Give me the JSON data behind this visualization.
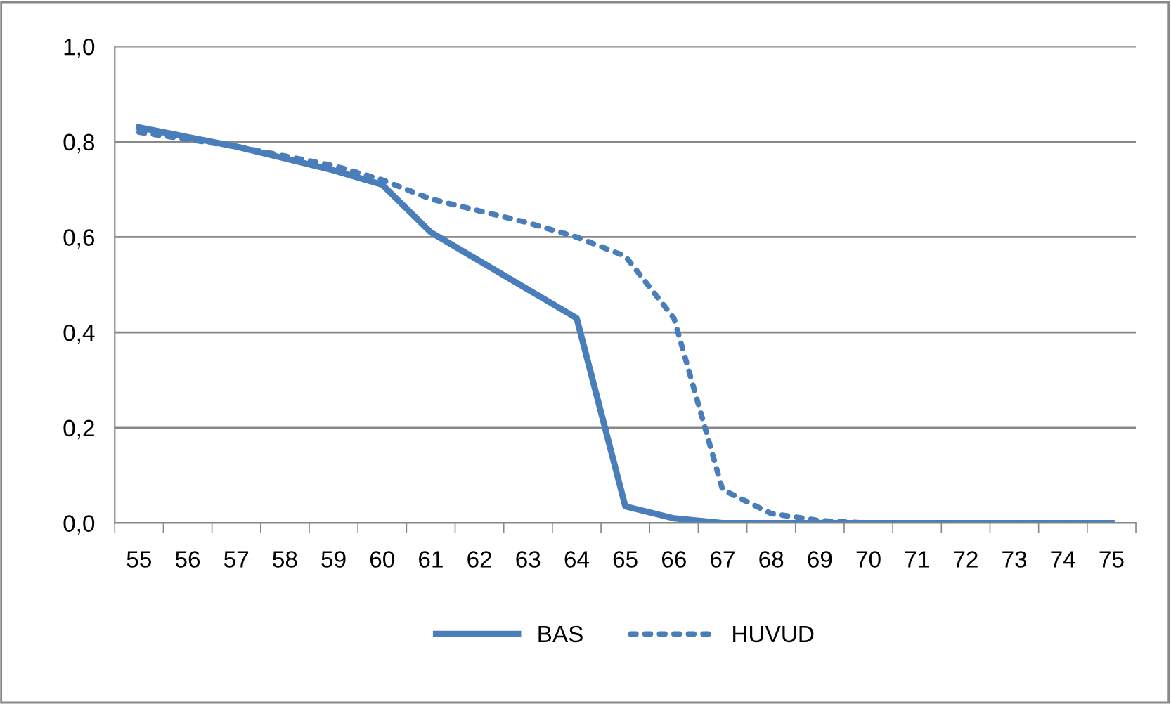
{
  "chart_data": {
    "type": "line",
    "categories": [
      "55",
      "56",
      "57",
      "58",
      "59",
      "60",
      "61",
      "62",
      "63",
      "64",
      "65",
      "66",
      "67",
      "68",
      "69",
      "70",
      "71",
      "72",
      "73",
      "74",
      "75"
    ],
    "series": [
      {
        "name": "BAS",
        "color": "#4a7ebb",
        "line_style": "solid",
        "values": [
          0.83,
          0.81,
          0.79,
          0.765,
          0.74,
          0.71,
          0.61,
          0.55,
          0.49,
          0.43,
          0.035,
          0.01,
          0.0,
          0.0,
          0.0,
          0.0,
          0.0,
          0.0,
          0.0,
          0.0,
          0.0
        ]
      },
      {
        "name": "HUVUD",
        "color": "#4a7ebb",
        "line_style": "dotted",
        "values": [
          0.82,
          0.805,
          0.79,
          0.77,
          0.75,
          0.72,
          0.68,
          0.655,
          0.63,
          0.6,
          0.56,
          0.43,
          0.07,
          0.02,
          0.005,
          0.0,
          0.0,
          0.0,
          0.0,
          0.0,
          0.0
        ]
      }
    ],
    "ylim": [
      0,
      1.0
    ],
    "yticks": [
      {
        "value": 0,
        "label": "0,0"
      },
      {
        "value": 0.2,
        "label": "0,2"
      },
      {
        "value": 0.4,
        "label": "0,4"
      },
      {
        "value": 0.6,
        "label": "0,6"
      },
      {
        "value": 0.8,
        "label": "0,8"
      },
      {
        "value": 1.0,
        "label": "1,0"
      }
    ],
    "grid": "y",
    "legend": "bottom",
    "marker": "none"
  }
}
